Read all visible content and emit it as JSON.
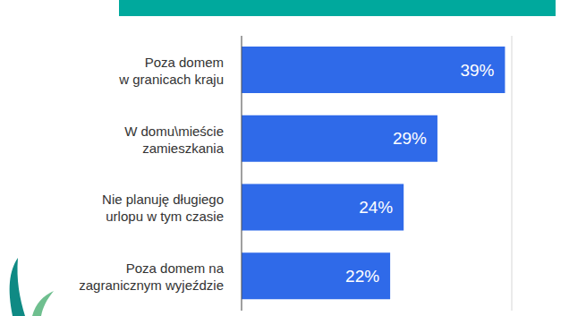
{
  "chart_data": {
    "type": "bar",
    "orientation": "horizontal",
    "categories": [
      "Poza domem\nw granicach kraju",
      "W domu\\mieście\nzamieszkania",
      "Nie planuję długiego\nurlopu w tym czasie",
      "Poza domem na\nzagranicznym wyjeździe"
    ],
    "values": [
      39,
      29,
      24,
      22
    ],
    "value_labels": [
      "39%",
      "29%",
      "24%",
      "22%"
    ],
    "color": "#2f6ae9",
    "xlim": [
      0,
      40
    ],
    "xticks": [
      0,
      10,
      20,
      30,
      40
    ],
    "grid": true,
    "data_labels": true,
    "tick_labels": "y"
  }
}
